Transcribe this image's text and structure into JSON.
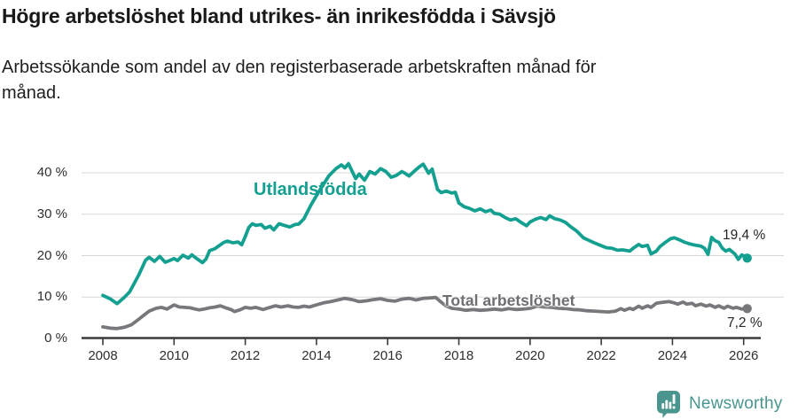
{
  "chart_data": {
    "type": "line",
    "title": "Högre arbetslöshet bland utrikes- än inrikesfödda i Sävsjö",
    "subtitle": "Arbetssökande som andel av den registerbaserade arbetskraften månad för månad.",
    "grid": "horizontal",
    "legend_position": "inline-labels",
    "x_axis": {
      "range": [
        2007.4,
        2027.2
      ],
      "ticks": [
        {
          "value": 2008,
          "label": "2008"
        },
        {
          "value": 2010,
          "label": "2010"
        },
        {
          "value": 2012,
          "label": "2012"
        },
        {
          "value": 2014,
          "label": "2014"
        },
        {
          "value": 2016,
          "label": "2016"
        },
        {
          "value": 2018,
          "label": "2018"
        },
        {
          "value": 2020,
          "label": "2020"
        },
        {
          "value": 2022,
          "label": "2022"
        },
        {
          "value": 2024,
          "label": "2024"
        },
        {
          "value": 2026,
          "label": "2026"
        }
      ]
    },
    "y_axis": {
      "range": [
        0,
        45
      ],
      "unit": "%",
      "ticks": [
        {
          "value": 0,
          "label": "0 %"
        },
        {
          "value": 10,
          "label": "10 %"
        },
        {
          "value": 20,
          "label": "20 %"
        },
        {
          "value": 30,
          "label": "30 %"
        },
        {
          "value": 40,
          "label": "40 %"
        }
      ]
    },
    "series": [
      {
        "name": "Utlandsfödda",
        "color": "#14a091",
        "end_label": "19,4 %",
        "end_value": 19.4,
        "points": [
          [
            2008.0,
            10.4
          ],
          [
            2008.2,
            9.6
          ],
          [
            2008.4,
            8.4
          ],
          [
            2008.6,
            9.9
          ],
          [
            2008.75,
            11.2
          ],
          [
            2009.0,
            15.2
          ],
          [
            2009.2,
            18.9
          ],
          [
            2009.3,
            19.6
          ],
          [
            2009.45,
            18.6
          ],
          [
            2009.6,
            19.8
          ],
          [
            2009.75,
            18.4
          ],
          [
            2009.9,
            18.9
          ],
          [
            2010.0,
            19.3
          ],
          [
            2010.1,
            18.8
          ],
          [
            2010.25,
            20.1
          ],
          [
            2010.4,
            19.4
          ],
          [
            2010.5,
            20.2
          ],
          [
            2010.65,
            19.2
          ],
          [
            2010.8,
            18.3
          ],
          [
            2010.9,
            19.2
          ],
          [
            2011.0,
            21.2
          ],
          [
            2011.15,
            21.7
          ],
          [
            2011.25,
            22.3
          ],
          [
            2011.4,
            23.2
          ],
          [
            2011.5,
            23.5
          ],
          [
            2011.65,
            23.1
          ],
          [
            2011.8,
            23.3
          ],
          [
            2011.9,
            22.6
          ],
          [
            2012.0,
            24.6
          ],
          [
            2012.1,
            26.8
          ],
          [
            2012.2,
            27.7
          ],
          [
            2012.3,
            27.3
          ],
          [
            2012.45,
            27.5
          ],
          [
            2012.55,
            26.6
          ],
          [
            2012.7,
            27.1
          ],
          [
            2012.8,
            26.2
          ],
          [
            2012.95,
            27.7
          ],
          [
            2013.1,
            27.3
          ],
          [
            2013.25,
            26.9
          ],
          [
            2013.4,
            27.5
          ],
          [
            2013.5,
            27.6
          ],
          [
            2013.65,
            28.9
          ],
          [
            2013.85,
            32.3
          ],
          [
            2014.1,
            35.9
          ],
          [
            2014.35,
            39.3
          ],
          [
            2014.55,
            41.0
          ],
          [
            2014.7,
            41.9
          ],
          [
            2014.8,
            41.2
          ],
          [
            2014.9,
            42.2
          ],
          [
            2015.1,
            38.6
          ],
          [
            2015.2,
            39.7
          ],
          [
            2015.35,
            38.2
          ],
          [
            2015.5,
            40.3
          ],
          [
            2015.65,
            39.7
          ],
          [
            2015.8,
            41.0
          ],
          [
            2015.95,
            40.3
          ],
          [
            2016.1,
            38.9
          ],
          [
            2016.25,
            39.4
          ],
          [
            2016.4,
            40.3
          ],
          [
            2016.5,
            39.8
          ],
          [
            2016.6,
            39.2
          ],
          [
            2016.75,
            40.4
          ],
          [
            2016.9,
            41.5
          ],
          [
            2017.0,
            42.1
          ],
          [
            2017.15,
            39.9
          ],
          [
            2017.25,
            40.9
          ],
          [
            2017.4,
            36.0
          ],
          [
            2017.5,
            35.2
          ],
          [
            2017.65,
            35.6
          ],
          [
            2017.8,
            35.1
          ],
          [
            2017.9,
            35.3
          ],
          [
            2018.0,
            32.7
          ],
          [
            2018.15,
            31.8
          ],
          [
            2018.3,
            31.4
          ],
          [
            2018.45,
            30.8
          ],
          [
            2018.6,
            31.3
          ],
          [
            2018.75,
            30.6
          ],
          [
            2018.9,
            31.0
          ],
          [
            2019.0,
            30.2
          ],
          [
            2019.15,
            30.0
          ],
          [
            2019.3,
            29.2
          ],
          [
            2019.45,
            28.6
          ],
          [
            2019.6,
            28.9
          ],
          [
            2019.75,
            28.0
          ],
          [
            2019.9,
            27.2
          ],
          [
            2020.0,
            28.1
          ],
          [
            2020.15,
            28.8
          ],
          [
            2020.3,
            29.2
          ],
          [
            2020.45,
            28.7
          ],
          [
            2020.55,
            29.6
          ],
          [
            2020.7,
            28.9
          ],
          [
            2020.85,
            28.6
          ],
          [
            2021.0,
            28.0
          ],
          [
            2021.15,
            26.9
          ],
          [
            2021.3,
            26.0
          ],
          [
            2021.5,
            24.3
          ],
          [
            2021.65,
            23.7
          ],
          [
            2021.8,
            23.1
          ],
          [
            2022.0,
            22.4
          ],
          [
            2022.15,
            21.9
          ],
          [
            2022.3,
            21.8
          ],
          [
            2022.45,
            21.3
          ],
          [
            2022.6,
            21.4
          ],
          [
            2022.8,
            21.1
          ],
          [
            2022.9,
            21.8
          ],
          [
            2023.05,
            22.7
          ],
          [
            2023.15,
            22.2
          ],
          [
            2023.3,
            22.5
          ],
          [
            2023.4,
            20.4
          ],
          [
            2023.55,
            21.1
          ],
          [
            2023.65,
            22.2
          ],
          [
            2023.8,
            23.2
          ],
          [
            2023.95,
            24.1
          ],
          [
            2024.05,
            24.3
          ],
          [
            2024.2,
            23.8
          ],
          [
            2024.35,
            23.2
          ],
          [
            2024.5,
            22.8
          ],
          [
            2024.65,
            22.5
          ],
          [
            2024.8,
            22.3
          ],
          [
            2024.9,
            21.8
          ],
          [
            2025.0,
            20.3
          ],
          [
            2025.1,
            24.4
          ],
          [
            2025.2,
            23.6
          ],
          [
            2025.3,
            23.2
          ],
          [
            2025.4,
            21.8
          ],
          [
            2025.5,
            21.1
          ],
          [
            2025.6,
            21.5
          ],
          [
            2025.75,
            20.4
          ],
          [
            2025.85,
            19.1
          ],
          [
            2025.95,
            20.2
          ],
          [
            2026.1,
            19.4
          ]
        ]
      },
      {
        "name": "Total arbetslöshet",
        "color": "#78787c",
        "end_label": "7,2 %",
        "end_value": 7.2,
        "points": [
          [
            2008.0,
            2.8
          ],
          [
            2008.2,
            2.5
          ],
          [
            2008.4,
            2.4
          ],
          [
            2008.6,
            2.7
          ],
          [
            2008.8,
            3.3
          ],
          [
            2009.0,
            4.6
          ],
          [
            2009.15,
            5.6
          ],
          [
            2009.3,
            6.6
          ],
          [
            2009.5,
            7.3
          ],
          [
            2009.65,
            7.5
          ],
          [
            2009.8,
            7.1
          ],
          [
            2010.0,
            8.1
          ],
          [
            2010.15,
            7.6
          ],
          [
            2010.3,
            7.5
          ],
          [
            2010.45,
            7.4
          ],
          [
            2010.6,
            7.1
          ],
          [
            2010.7,
            6.9
          ],
          [
            2010.85,
            7.1
          ],
          [
            2011.0,
            7.4
          ],
          [
            2011.15,
            7.6
          ],
          [
            2011.3,
            7.9
          ],
          [
            2011.45,
            7.4
          ],
          [
            2011.6,
            7.0
          ],
          [
            2011.7,
            6.5
          ],
          [
            2011.85,
            6.9
          ],
          [
            2012.0,
            7.5
          ],
          [
            2012.15,
            7.3
          ],
          [
            2012.3,
            7.5
          ],
          [
            2012.5,
            7.0
          ],
          [
            2012.65,
            7.4
          ],
          [
            2012.85,
            7.9
          ],
          [
            2013.0,
            7.6
          ],
          [
            2013.2,
            7.9
          ],
          [
            2013.35,
            7.6
          ],
          [
            2013.5,
            7.5
          ],
          [
            2013.65,
            7.8
          ],
          [
            2013.8,
            7.6
          ],
          [
            2014.0,
            8.1
          ],
          [
            2014.2,
            8.6
          ],
          [
            2014.4,
            8.9
          ],
          [
            2014.6,
            9.3
          ],
          [
            2014.8,
            9.7
          ],
          [
            2015.0,
            9.4
          ],
          [
            2015.2,
            8.9
          ],
          [
            2015.4,
            9.1
          ],
          [
            2015.6,
            9.4
          ],
          [
            2015.8,
            9.6
          ],
          [
            2016.0,
            9.2
          ],
          [
            2016.2,
            9.0
          ],
          [
            2016.4,
            9.5
          ],
          [
            2016.6,
            9.7
          ],
          [
            2016.8,
            9.3
          ],
          [
            2017.0,
            9.7
          ],
          [
            2017.2,
            9.8
          ],
          [
            2017.35,
            9.9
          ],
          [
            2017.5,
            8.8
          ],
          [
            2017.65,
            7.8
          ],
          [
            2017.8,
            7.3
          ],
          [
            2018.0,
            7.1
          ],
          [
            2018.2,
            6.8
          ],
          [
            2018.4,
            7.0
          ],
          [
            2018.6,
            6.8
          ],
          [
            2018.8,
            6.9
          ],
          [
            2019.0,
            7.1
          ],
          [
            2019.2,
            6.9
          ],
          [
            2019.4,
            7.2
          ],
          [
            2019.6,
            7.0
          ],
          [
            2019.8,
            7.1
          ],
          [
            2020.0,
            7.3
          ],
          [
            2020.2,
            7.8
          ],
          [
            2020.4,
            7.6
          ],
          [
            2020.6,
            7.5
          ],
          [
            2020.8,
            7.3
          ],
          [
            2021.0,
            7.2
          ],
          [
            2021.2,
            7.0
          ],
          [
            2021.4,
            6.9
          ],
          [
            2021.6,
            6.7
          ],
          [
            2021.8,
            6.6
          ],
          [
            2022.0,
            6.5
          ],
          [
            2022.2,
            6.4
          ],
          [
            2022.4,
            6.6
          ],
          [
            2022.55,
            7.2
          ],
          [
            2022.65,
            6.8
          ],
          [
            2022.8,
            7.3
          ],
          [
            2022.9,
            7.0
          ],
          [
            2023.05,
            7.8
          ],
          [
            2023.15,
            7.3
          ],
          [
            2023.3,
            7.9
          ],
          [
            2023.4,
            7.5
          ],
          [
            2023.55,
            8.5
          ],
          [
            2023.7,
            8.7
          ],
          [
            2023.9,
            8.9
          ],
          [
            2024.05,
            8.6
          ],
          [
            2024.15,
            8.3
          ],
          [
            2024.3,
            8.8
          ],
          [
            2024.4,
            8.3
          ],
          [
            2024.55,
            8.5
          ],
          [
            2024.65,
            7.9
          ],
          [
            2024.8,
            8.3
          ],
          [
            2024.95,
            7.8
          ],
          [
            2025.05,
            8.1
          ],
          [
            2025.2,
            7.5
          ],
          [
            2025.3,
            7.9
          ],
          [
            2025.45,
            7.3
          ],
          [
            2025.55,
            7.8
          ],
          [
            2025.7,
            7.3
          ],
          [
            2025.8,
            7.5
          ],
          [
            2025.95,
            7.1
          ],
          [
            2026.05,
            7.3
          ],
          [
            2026.1,
            7.2
          ]
        ]
      }
    ]
  },
  "colors": {
    "accent_teal": "#14a091",
    "series_gray": "#78787c",
    "axis": "#3a3a3a",
    "gridline": "#d7d7d7",
    "brand_teal": "#4a968f"
  },
  "footer": {
    "brand": "Newsworthy",
    "logo_icon": "newsworthy-speech-bubble-bar-chart-icon"
  }
}
